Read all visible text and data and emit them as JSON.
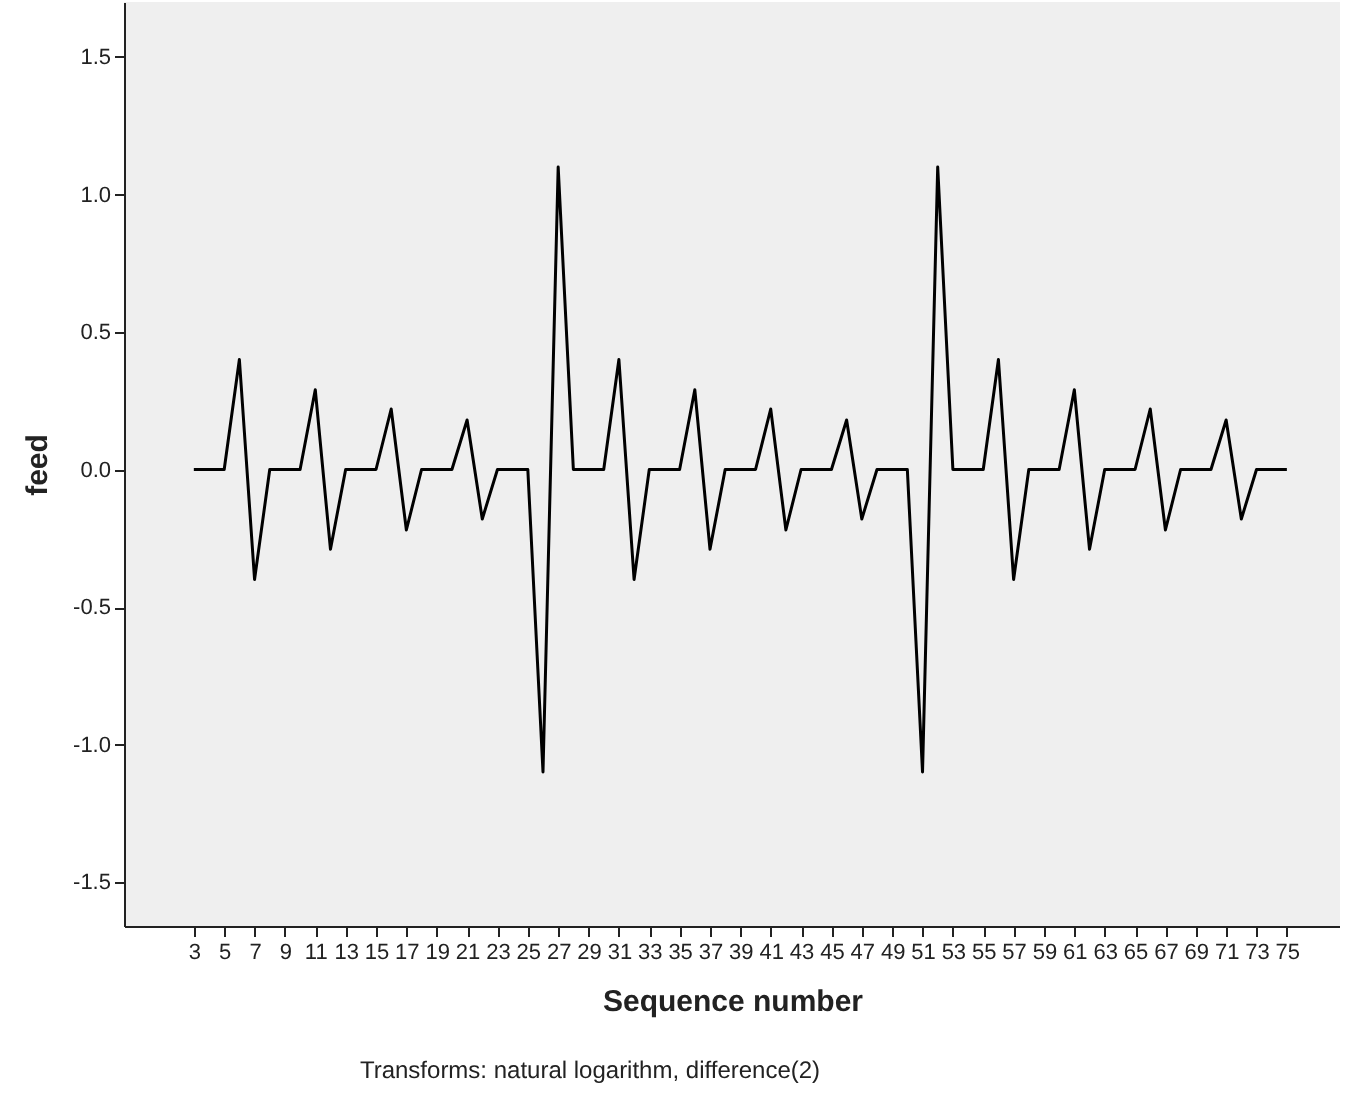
{
  "chart_data": {
    "type": "line",
    "xlabel": "Sequence number",
    "ylabel": "feed",
    "annotations": [
      "Transforms: natural logarithm, difference(2)"
    ],
    "x": [
      3,
      4,
      5,
      6,
      7,
      8,
      9,
      10,
      11,
      12,
      13,
      14,
      15,
      16,
      17,
      18,
      19,
      20,
      21,
      22,
      23,
      24,
      25,
      26,
      27,
      28,
      29,
      30,
      31,
      32,
      33,
      34,
      35,
      36,
      37,
      38,
      39,
      40,
      41,
      42,
      43,
      44,
      45,
      46,
      47,
      48,
      49,
      50,
      51,
      52,
      53,
      54,
      55,
      56,
      57,
      58,
      59,
      60,
      61,
      62,
      63,
      64,
      65,
      66,
      67,
      68,
      69,
      70,
      71,
      72,
      73,
      74,
      75
    ],
    "series": [
      {
        "color": "#000000",
        "values": [
          0,
          0,
          0,
          0.4,
          -0.4,
          0,
          0,
          0,
          0.29,
          -0.29,
          0,
          0,
          0,
          0.22,
          -0.22,
          0,
          0,
          0,
          0.18,
          -0.18,
          0,
          0,
          0,
          -1.1,
          1.1,
          0,
          0,
          0,
          0.4,
          -0.4,
          0,
          0,
          0,
          0.29,
          -0.29,
          0,
          0,
          0,
          0.22,
          -0.22,
          0,
          0,
          0,
          0.18,
          -0.18,
          0,
          0,
          0,
          -1.1,
          1.1,
          0,
          0,
          0,
          0.4,
          -0.4,
          0,
          0,
          0,
          0.29,
          -0.29,
          0,
          0,
          0,
          0.22,
          -0.22,
          0,
          0,
          0,
          0.18,
          -0.18,
          0,
          0,
          0
        ]
      }
    ],
    "xlim": [
      -1.6,
      78.5
    ],
    "xticks": [
      3,
      5,
      7,
      9,
      11,
      13,
      15,
      17,
      19,
      21,
      23,
      25,
      27,
      29,
      31,
      33,
      35,
      37,
      39,
      41,
      43,
      45,
      47,
      49,
      51,
      53,
      55,
      57,
      59,
      61,
      63,
      65,
      67,
      69,
      71,
      73,
      75
    ],
    "ylim": [
      -1.66,
      1.7
    ],
    "yticks": [
      {
        "value": -1.5,
        "label": "-1.5"
      },
      {
        "value": -1.0,
        "label": "-1.0"
      },
      {
        "value": -0.5,
        "label": "-0.5"
      },
      {
        "value": 0,
        "label": "0.0"
      },
      {
        "value": 0.5,
        "label": "0.5"
      },
      {
        "value": 1.0,
        "label": "1.0"
      },
      {
        "value": 1.5,
        "label": "1.5"
      }
    ],
    "grid": false
  }
}
